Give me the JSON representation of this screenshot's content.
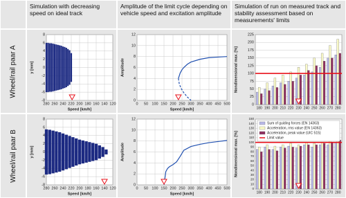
{
  "columns": [
    "Simulation with decreasing speed on ideal track",
    "Amplitude of the limit cycle depending on vehicle speed and excitation amplitude",
    "Simulation of run on measured track and stability assessment based on measurements' limits"
  ],
  "rows": [
    "Wheel/rail paar A",
    "Wheel/rail paar B"
  ],
  "chart_data": [
    {
      "type": "envelope",
      "xlabel": "Speed [km/h]",
      "ylabel": "y [mm]",
      "color": "#1c2a82",
      "x": [
        280,
        276,
        272,
        268,
        264,
        260,
        256,
        252,
        248,
        244,
        240,
        236,
        232,
        228,
        224,
        220
      ],
      "values": [
        6,
        6,
        5.9,
        5.9,
        5.8,
        5.7,
        5.6,
        5.5,
        5.4,
        5.3,
        5.1,
        5,
        4.8,
        4.5,
        4.2,
        3.5
      ],
      "xlim": [
        280,
        120
      ],
      "xticks": [
        280,
        260,
        240,
        220,
        200,
        180,
        160,
        140,
        120
      ],
      "ylim": [
        -8,
        8
      ],
      "yticks": [
        -8,
        -6,
        -4,
        -2,
        0,
        2,
        4,
        6,
        8
      ],
      "marker": 218,
      "marker_color": "#e8101a",
      "grid": true
    },
    {
      "type": "line",
      "xlabel": "Speed [km/h]",
      "ylabel": "Amplitude",
      "series": [
        {
          "color": "#2050b0",
          "dash": false,
          "x": [
            230,
            240,
            250,
            260,
            280,
            300,
            350,
            400,
            450,
            500
          ],
          "values": [
            4,
            5,
            5.6,
            6,
            6.6,
            7,
            7.5,
            7.8,
            7.9,
            8
          ]
        },
        {
          "color": "#2050b0",
          "dash": true,
          "x": [
            230,
            235,
            245,
            260,
            280,
            300
          ],
          "values": [
            4,
            3,
            2.2,
            1.4,
            0.6,
            0
          ]
        }
      ],
      "xlim": [
        0,
        500
      ],
      "xticks": [
        0,
        50,
        100,
        150,
        200,
        250,
        300,
        350,
        400,
        450,
        500
      ],
      "ylim": [
        0,
        12
      ],
      "yticks": [
        0,
        2,
        4,
        6,
        8,
        10,
        12
      ],
      "marker": 230,
      "marker_color": "#e8101a",
      "grid": true
    },
    {
      "type": "grouped_bar",
      "ylabel": "Nondimensional max. [%]",
      "categories": [
        180,
        190,
        200,
        210,
        220,
        230,
        240,
        250,
        260,
        270,
        280
      ],
      "series": [
        {
          "color": "#b8b8e8",
          "values": [
            40,
            50,
            60,
            70,
            75,
            85,
            95,
            105,
            120,
            150,
            160
          ]
        },
        {
          "color": "#fafac8",
          "values": [
            55,
            70,
            85,
            95,
            105,
            120,
            130,
            150,
            165,
            190,
            210
          ]
        },
        {
          "color": "#903060",
          "values": [
            35,
            45,
            55,
            65,
            75,
            95,
            110,
            125,
            140,
            150,
            165
          ]
        }
      ],
      "ylim": [
        0,
        225
      ],
      "yticks": [
        0,
        25,
        50,
        75,
        100,
        125,
        150,
        175,
        200,
        225
      ],
      "limit": {
        "value": 100,
        "color": "#e8101a"
      },
      "marker": 230,
      "marker_color": "#e8101a",
      "grid": true
    },
    {
      "type": "envelope",
      "xlabel": "Speed [km/h]",
      "ylabel": "y [mm]",
      "color": "#1c2a82",
      "x": [
        280,
        272,
        264,
        256,
        248,
        240,
        232,
        224,
        216,
        208,
        200,
        192,
        184,
        176,
        168,
        160,
        152,
        144,
        136
      ],
      "values": [
        5.5,
        5.4,
        5.2,
        5,
        4.8,
        4.5,
        4.2,
        3.9,
        3.6,
        3.3,
        3,
        2.8,
        2.6,
        2.4,
        2.2,
        2,
        1.6,
        1.2,
        0.6
      ],
      "xlim": [
        280,
        120
      ],
      "xticks": [
        280,
        260,
        240,
        220,
        200,
        180,
        160,
        140,
        120
      ],
      "ylim": [
        -8,
        8
      ],
      "yticks": [
        -8,
        -6,
        -4,
        -2,
        0,
        2,
        4,
        6,
        8
      ],
      "marker": 140,
      "marker_color": "#e8101a",
      "grid": true
    },
    {
      "type": "line",
      "xlabel": "Speed [km/h]",
      "ylabel": "Amplitude",
      "series": [
        {
          "color": "#2050b0",
          "dash": false,
          "x": [
            150,
            160,
            170,
            180,
            200,
            220,
            240,
            260,
            300,
            350,
            400,
            450,
            500
          ],
          "values": [
            0,
            2.4,
            3,
            3.3,
            3.7,
            4.2,
            5.2,
            6.3,
            7,
            7.4,
            7.7,
            7.9,
            8.1
          ]
        }
      ],
      "xlim": [
        0,
        500
      ],
      "xticks": [
        0,
        50,
        100,
        150,
        200,
        250,
        300,
        350,
        400,
        450,
        500
      ],
      "ylim": [
        0,
        12
      ],
      "yticks": [
        0,
        2,
        4,
        6,
        8,
        10,
        12
      ],
      "marker": 150,
      "marker_color": "#e8101a",
      "grid": true
    },
    {
      "type": "grouped_bar",
      "ylabel": "Nondimensional max. [%]",
      "categories": [
        180,
        190,
        200,
        210,
        220,
        230,
        240,
        250,
        260,
        270,
        280
      ],
      "series": [
        {
          "name": "Sum of guiding forces (EN 14363)",
          "color": "#b8b8e8",
          "values": [
            85,
            90,
            85,
            90,
            92,
            88,
            95,
            90,
            95,
            95,
            100
          ]
        },
        {
          "name": "Acceleration, rms value (EN 14363)",
          "color": "#fafac8",
          "values": [
            90,
            95,
            92,
            95,
            98,
            95,
            100,
            98,
            100,
            105,
            110
          ]
        },
        {
          "name": "Acceleration, peak value (UIC 515)",
          "color": "#903060",
          "values": [
            80,
            85,
            82,
            88,
            90,
            92,
            95,
            95,
            98,
            100,
            105
          ]
        }
      ],
      "ylim": [
        0,
        150
      ],
      "yticks": [
        0,
        10,
        20,
        30,
        40,
        50,
        60,
        70,
        80,
        90,
        100,
        110,
        120,
        130,
        140,
        150
      ],
      "limit": {
        "value": 100,
        "color": "#e8101a",
        "name": "Limit value"
      },
      "marker": 230,
      "marker_color": "#e8101a",
      "grid": true
    }
  ]
}
